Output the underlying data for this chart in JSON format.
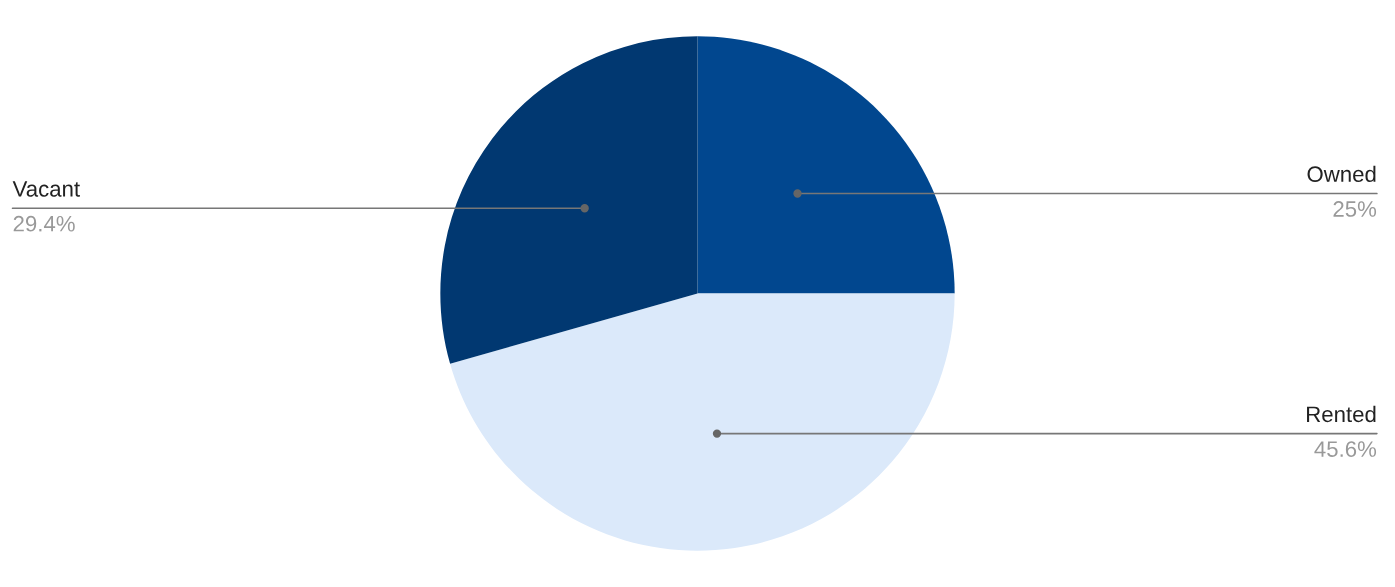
{
  "chart_data": {
    "type": "pie",
    "categories": [
      "Owned",
      "Rented",
      "Vacant"
    ],
    "values": [
      25,
      45.6,
      29.4
    ],
    "colors": [
      "#01478f",
      "#dbe9fa",
      "#013871"
    ],
    "value_labels": [
      "25%",
      "45.6%",
      "29.4%"
    ]
  }
}
